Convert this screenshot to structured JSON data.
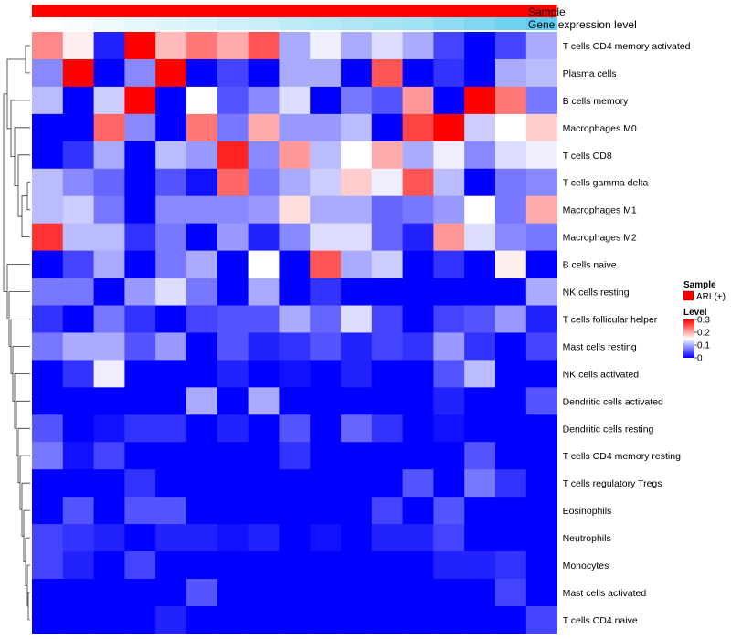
{
  "chart_data": {
    "type": "heatmap",
    "annotation_tracks": [
      {
        "name": "Sample",
        "kind": "categorical",
        "color": "#ff0000",
        "label_text": "Sample"
      },
      {
        "name": "Gene expression level",
        "kind": "gradient",
        "color_low": "#ffffff",
        "color_high": "#5fcdef",
        "label_text": "Gene expression level"
      }
    ],
    "rows": [
      "T cells CD4 memory activated",
      "Plasma cells",
      "B cells memory",
      "Macrophages M0",
      "T cells CD8",
      "T cells gamma delta",
      "Macrophages M1",
      "Macrophages M2",
      "B cells naive",
      "NK cells resting",
      "T cells follicular helper",
      "Mast cells resting",
      "NK cells activated",
      "Dendritic cells activated",
      "Dendritic cells resting",
      "T cells CD4 memory resting",
      "T cells regulatory  Tregs",
      "Eosinophils",
      "Neutrophils",
      "Monocytes",
      "Mast cells activated",
      "T cells CD4 naive"
    ],
    "n_columns": 17,
    "values": [
      [
        0.22,
        0.16,
        0.02,
        0.3,
        0.19,
        0.23,
        0.2,
        0.25,
        0.1,
        0.14,
        0.1,
        0.13,
        0.1,
        0.04,
        0.0,
        0.04,
        0.1
      ],
      [
        0.08,
        0.3,
        0.0,
        0.08,
        0.3,
        0.0,
        0.04,
        0.0,
        0.1,
        0.1,
        0.0,
        0.25,
        0.0,
        0.03,
        0.0,
        0.1,
        0.11
      ],
      [
        0.11,
        0.0,
        0.12,
        0.3,
        0.0,
        0.15,
        0.05,
        0.08,
        0.13,
        0.0,
        0.07,
        0.05,
        0.21,
        0.0,
        0.3,
        0.23,
        0.07
      ],
      [
        0.0,
        0.0,
        0.24,
        0.08,
        0.0,
        0.23,
        0.07,
        0.2,
        0.09,
        0.09,
        0.11,
        0.0,
        0.26,
        0.3,
        0.12,
        0.15,
        0.18
      ],
      [
        0.0,
        0.03,
        0.1,
        0.0,
        0.11,
        0.09,
        0.28,
        0.08,
        0.21,
        0.11,
        0.15,
        0.2,
        0.1,
        0.14,
        0.08,
        0.13,
        0.14
      ],
      [
        0.11,
        0.08,
        0.06,
        0.0,
        0.05,
        0.01,
        0.24,
        0.07,
        0.1,
        0.12,
        0.18,
        0.14,
        0.25,
        0.11,
        0.0,
        0.07,
        0.08
      ],
      [
        0.11,
        0.12,
        0.07,
        0.0,
        0.08,
        0.08,
        0.08,
        0.09,
        0.17,
        0.1,
        0.1,
        0.06,
        0.07,
        0.09,
        0.15,
        0.07,
        0.2
      ],
      [
        0.27,
        0.11,
        0.11,
        0.03,
        0.07,
        0.0,
        0.09,
        0.02,
        0.08,
        0.13,
        0.13,
        0.06,
        0.02,
        0.21,
        0.13,
        0.08,
        0.07
      ],
      [
        0.0,
        0.04,
        0.1,
        0.0,
        0.07,
        0.1,
        0.0,
        0.15,
        0.0,
        0.25,
        0.1,
        0.12,
        0.0,
        0.03,
        0.0,
        0.16,
        0.0
      ],
      [
        0.07,
        0.07,
        0.0,
        0.09,
        0.13,
        0.07,
        0.0,
        0.1,
        0.0,
        0.03,
        0.0,
        0.0,
        0.0,
        0.0,
        0.0,
        0.0,
        0.1
      ],
      [
        0.03,
        0.0,
        0.07,
        0.03,
        0.0,
        0.04,
        0.05,
        0.05,
        0.1,
        0.06,
        0.13,
        0.04,
        0.0,
        0.04,
        0.05,
        0.09,
        0.02
      ],
      [
        0.07,
        0.1,
        0.1,
        0.05,
        0.09,
        0.0,
        0.05,
        0.02,
        0.03,
        0.05,
        0.02,
        0.04,
        0.03,
        0.09,
        0.03,
        0.0,
        0.04
      ],
      [
        0.0,
        0.03,
        0.14,
        0.0,
        0.0,
        0.0,
        0.02,
        0.0,
        0.01,
        0.0,
        0.02,
        0.0,
        0.0,
        0.05,
        0.11,
        0.0,
        0.0
      ],
      [
        0.0,
        0.0,
        0.0,
        0.0,
        0.0,
        0.1,
        0.0,
        0.1,
        0.0,
        0.0,
        0.0,
        0.0,
        0.0,
        0.02,
        0.0,
        0.0,
        0.05
      ],
      [
        0.05,
        0.0,
        0.01,
        0.03,
        0.03,
        0.0,
        0.02,
        0.0,
        0.05,
        0.0,
        0.06,
        0.03,
        0.0,
        0.01,
        0.0,
        0.0,
        0.0
      ],
      [
        0.07,
        0.01,
        0.04,
        0.0,
        0.0,
        0.0,
        0.0,
        0.0,
        0.03,
        0.0,
        0.0,
        0.0,
        0.0,
        0.0,
        0.05,
        0.0,
        0.0
      ],
      [
        0.0,
        0.0,
        0.0,
        0.03,
        0.0,
        0.0,
        0.0,
        0.0,
        0.0,
        0.0,
        0.0,
        0.0,
        0.05,
        0.0,
        0.07,
        0.03,
        0.0
      ],
      [
        0.0,
        0.05,
        0.0,
        0.05,
        0.05,
        0.0,
        0.0,
        0.0,
        0.0,
        0.0,
        0.0,
        0.04,
        0.0,
        0.05,
        0.0,
        0.0,
        0.0
      ],
      [
        0.04,
        0.03,
        0.02,
        0.0,
        0.02,
        0.02,
        0.01,
        0.02,
        0.0,
        0.01,
        0.0,
        0.02,
        0.02,
        0.04,
        0.0,
        0.0,
        0.0
      ],
      [
        0.04,
        0.02,
        0.0,
        0.04,
        0.0,
        0.0,
        0.0,
        0.0,
        0.0,
        0.0,
        0.0,
        0.0,
        0.0,
        0.02,
        0.02,
        0.03,
        0.0
      ],
      [
        0.0,
        0.0,
        0.0,
        0.0,
        0.0,
        0.05,
        0.0,
        0.0,
        0.0,
        0.0,
        0.0,
        0.0,
        0.0,
        0.0,
        0.0,
        0.04,
        0.0
      ],
      [
        0.0,
        0.0,
        0.0,
        0.0,
        0.02,
        0.0,
        0.0,
        0.0,
        0.0,
        0.0,
        0.0,
        0.0,
        0.0,
        0.0,
        0.0,
        0.0,
        0.04
      ]
    ],
    "gene_expression_level": [
      0.0,
      0.05,
      0.1,
      0.15,
      0.2,
      0.25,
      0.3,
      0.35,
      0.4,
      0.45,
      0.5,
      0.55,
      0.6,
      0.7,
      0.8,
      0.9,
      1.0
    ],
    "scale": {
      "min": 0,
      "max": 0.3,
      "ticks": [
        0.3,
        0.2,
        0.1,
        0
      ],
      "tick_labels": [
        "0.3",
        "0.2",
        "0.1",
        "0"
      ],
      "low_color": "#0000ff",
      "mid_color": "#ffffff",
      "high_color": "#ff0000",
      "mid_value": 0.15
    },
    "legends": {
      "sample": {
        "title": "Sample",
        "entry": "ARL(+)",
        "color": "#ff0000"
      },
      "level": {
        "title": "Level"
      }
    },
    "row_dendrogram": true,
    "column_dendrogram": false
  }
}
